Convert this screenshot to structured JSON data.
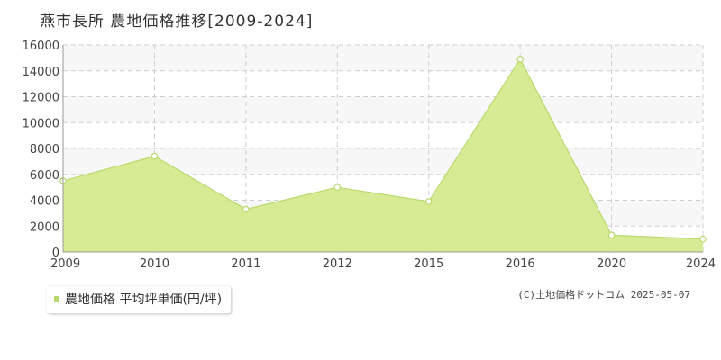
{
  "chart_data": {
    "type": "area",
    "title": "燕市長所 農地価格推移[2009-2024]",
    "categories": [
      "2009",
      "2010",
      "2011",
      "2012",
      "2015",
      "2016",
      "2020",
      "2024"
    ],
    "series": [
      {
        "name": "農地価格 平均坪単価(円/坪)",
        "values": [
          5500,
          7400,
          3300,
          5000,
          3900,
          14900,
          1300,
          1000
        ]
      }
    ],
    "y_ticks": [
      0,
      2000,
      4000,
      6000,
      8000,
      10000,
      12000,
      14000,
      16000
    ],
    "ylim": [
      0,
      16000
    ],
    "grid": true,
    "legend_position": "bottom-left",
    "colors": {
      "fill": "#d4ea8e",
      "line": "#b8d96b",
      "band": "#f7f7f7",
      "grid": "#cfcfcf"
    }
  },
  "credit": "(C)土地価格ドットコム 2025-05-07"
}
